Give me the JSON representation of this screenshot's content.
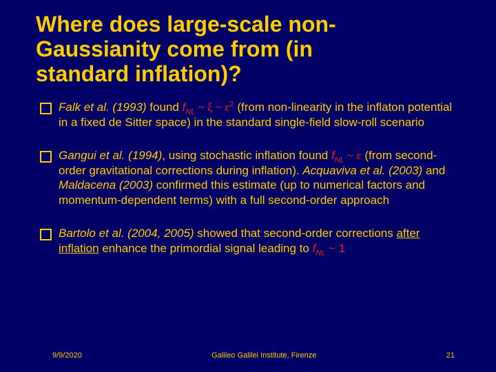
{
  "title_l1": "Where does large-scale non-",
  "title_l2": "Gaussianity come from (in",
  "title_l3": "standard inflation)?",
  "b1": {
    "ref": "Falk et al. (1993)",
    "a": " found ",
    "f": "f",
    "nl": "NL",
    "r1": " ~ ",
    "xi": "ξ",
    "r2": " ~ ",
    "eps": "ε",
    "sq": "2",
    "b": "(from non-linearity in the inflaton potential in a fixed de Sitter space) in the standard single-field slow-roll scenario"
  },
  "b2": {
    "ref1": "Gangui et al. (1994)",
    "a": ", using stochastic inflation found ",
    "f": "f",
    "nl": "NL",
    "r": " ~ ",
    "eps": "ε",
    "b": "(from second-order gravitational corrections during inflation). ",
    "ref2": "Acquaviva et al. (2003)",
    "c": " and ",
    "ref3": "Maldacena (2003)",
    "d": " confirmed this estimate (up to numerical factors and momentum-dependent terms) with a full second-order approach"
  },
  "b3": {
    "ref": "Bartolo et al. (2004, 2005)",
    "a": " showed that second-order corrections ",
    "u": "after inflation",
    "b": " enhance the primordial signal leading to ",
    "f": "f",
    "nl": "NL",
    "r": " ~ 1"
  },
  "footer": {
    "date": "9/9/2020",
    "venue": "Galileo Galilei Institute, Firenze",
    "page": "21"
  },
  "colors": {
    "bg": "#000066",
    "fg": "#ffcc00",
    "accent": "#ee2211"
  }
}
